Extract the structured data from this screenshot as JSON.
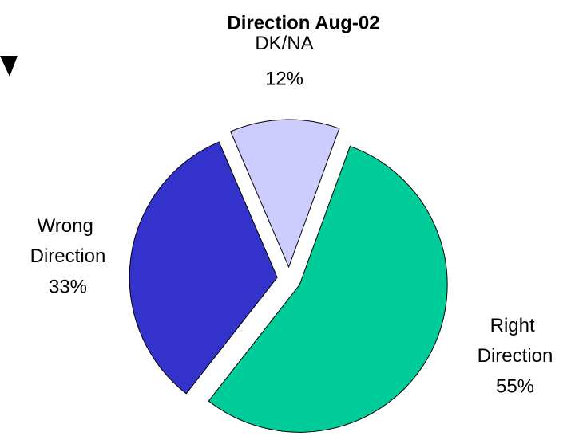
{
  "chart_data": {
    "type": "pie",
    "title": "Direction Aug-02",
    "categories": [
      "Right Direction",
      "Wrong Direction",
      "DK/NA"
    ],
    "values": [
      55,
      33,
      12
    ],
    "value_labels": [
      "55%",
      "33%",
      "12%"
    ],
    "colors": [
      "#00cc99",
      "#3333cc",
      "#ccccff"
    ]
  }
}
